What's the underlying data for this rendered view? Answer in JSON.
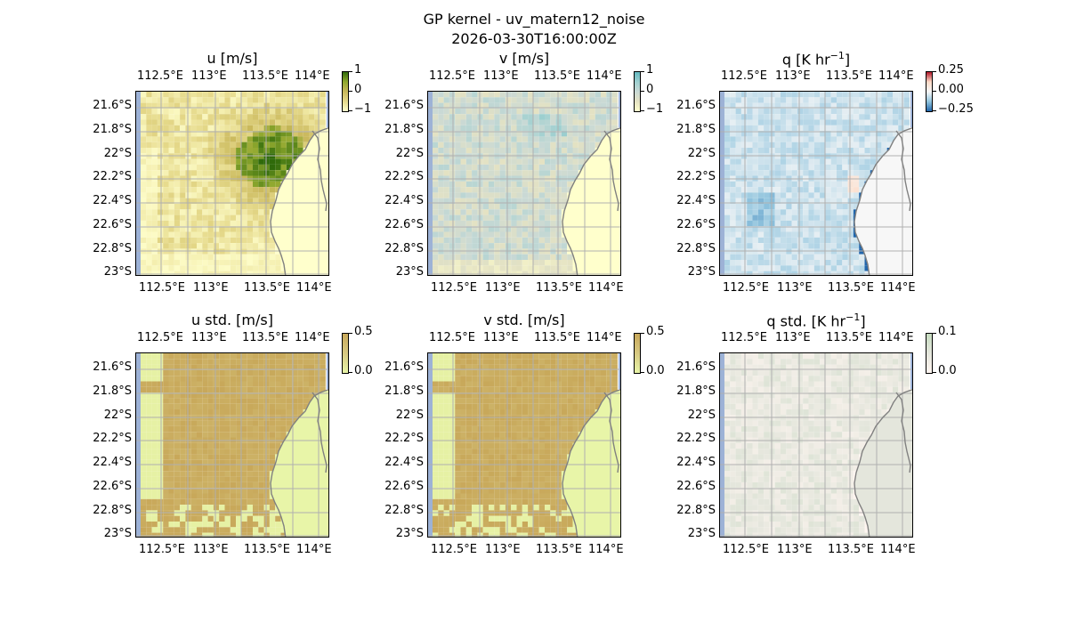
{
  "figure": {
    "title_line1": "GP kernel - uv_matern12_noise",
    "title_line2": "2026-03-30T16:00:00Z"
  },
  "axes": {
    "x_ticks": [
      "112.5°E",
      "113°E",
      "113.5°E",
      "114°E"
    ],
    "y_ticks": [
      "21.6°S",
      "21.8°S",
      "22°S",
      "22.2°S",
      "22.4°S",
      "22.6°S",
      "22.8°S",
      "23°S"
    ]
  },
  "colors": {
    "ocean_strip": "#9db2d6",
    "grid": "#b0b0b0",
    "coast": "#808080"
  },
  "chart_data": [
    {
      "type": "heatmap",
      "id": "u",
      "title": "u [m/s]",
      "title_sup": "",
      "x_range": [
        112.4,
        114.2
      ],
      "y_range": [
        -23.0,
        -21.45
      ],
      "colorbar": {
        "ticks": [
          "1",
          "0",
          "−1"
        ],
        "range": [
          -1,
          1
        ],
        "colormap": [
          "#ffffcc",
          "#e6da8c",
          "#c9b85b",
          "#8fa82e",
          "#2f6a0a"
        ]
      },
      "field": "strong positive core near 113.6°E 22°S, weak elsewhere"
    },
    {
      "type": "heatmap",
      "id": "v",
      "title": "v [m/s]",
      "title_sup": "",
      "x_range": [
        112.4,
        114.2
      ],
      "y_range": [
        -23.0,
        -21.45
      ],
      "colorbar": {
        "ticks": [
          "1",
          "0",
          "−1"
        ],
        "range": [
          -1,
          1
        ],
        "colormap": [
          "#ffffcc",
          "#e4e2c3",
          "#c9d9d5",
          "#9fd0d0",
          "#62b8bf"
        ]
      },
      "field": "weak teal values across the domain"
    },
    {
      "type": "heatmap",
      "id": "q",
      "title": "q [K hr",
      "title_sup": "−1",
      "x_range": [
        112.4,
        114.2
      ],
      "y_range": [
        -23.0,
        -21.45
      ],
      "colorbar": {
        "ticks": [
          "0.25",
          "0.00",
          "−0.25"
        ],
        "range": [
          -0.3,
          0.3
        ],
        "colormap": [
          "#2166ac",
          "#92c5de",
          "#f7f7f7",
          "#fddbc7",
          "#b2182b"
        ]
      },
      "field": "mostly slightly negative (blue), small positive patches"
    },
    {
      "type": "heatmap",
      "id": "u_std",
      "title": "u std. [m/s]",
      "title_sup": "",
      "x_range": [
        112.4,
        114.2
      ],
      "y_range": [
        -23.0,
        -21.45
      ],
      "colorbar": {
        "ticks": [
          "0.5",
          "0.0"
        ],
        "range": [
          0,
          0.5
        ],
        "colormap": [
          "#e8f5a8",
          "#d7c982",
          "#c8a85a"
        ]
      },
      "field": "near-uniform high std over data, low along the coast"
    },
    {
      "type": "heatmap",
      "id": "v_std",
      "title": "v std. [m/s]",
      "title_sup": "",
      "x_range": [
        112.4,
        114.2
      ],
      "y_range": [
        -23.0,
        -21.45
      ],
      "colorbar": {
        "ticks": [
          "0.5",
          "0.0"
        ],
        "range": [
          0,
          0.5
        ],
        "colormap": [
          "#e8f5a8",
          "#d7c982",
          "#c8a85a"
        ]
      },
      "field": "near-uniform high std over data, low along the coast"
    },
    {
      "type": "heatmap",
      "id": "q_std",
      "title": "q std. [K hr",
      "title_sup": "−1",
      "x_range": [
        112.4,
        114.2
      ],
      "y_range": [
        -23.0,
        -21.45
      ],
      "colorbar": {
        "ticks": [
          "0.1",
          "0.0"
        ],
        "range": [
          0,
          0.1
        ],
        "colormap": [
          "#fff5f0",
          "#e4e6dc",
          "#c6dcc0"
        ]
      },
      "field": "low std, faint green streaks"
    }
  ]
}
